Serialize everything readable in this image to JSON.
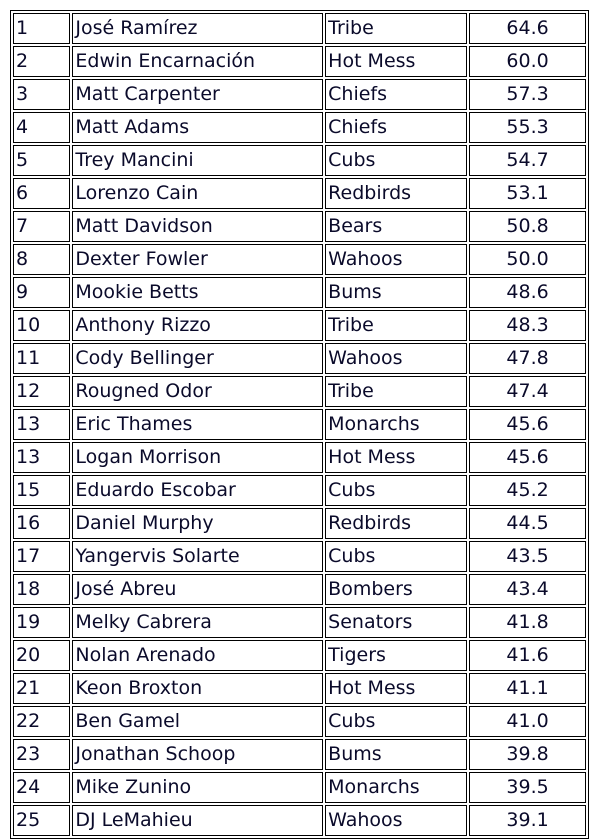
{
  "rows": [
    [
      "1",
      "José Ramírez",
      "Tribe",
      "64.6"
    ],
    [
      "2",
      "Edwin Encarnación",
      "Hot Mess",
      "60.0"
    ],
    [
      "3",
      "Matt Carpenter",
      "Chiefs",
      "57.3"
    ],
    [
      "4",
      "Matt Adams",
      "Chiefs",
      "55.3"
    ],
    [
      "5",
      "Trey Mancini",
      "Cubs",
      "54.7"
    ],
    [
      "6",
      "Lorenzo Cain",
      "Redbirds",
      "53.1"
    ],
    [
      "7",
      "Matt Davidson",
      "Bears",
      "50.8"
    ],
    [
      "8",
      "Dexter Fowler",
      "Wahoos",
      "50.0"
    ],
    [
      "9",
      "Mookie Betts",
      "Bums",
      "48.6"
    ],
    [
      "10",
      "Anthony Rizzo",
      "Tribe",
      "48.3"
    ],
    [
      "11",
      "Cody Bellinger",
      "Wahoos",
      "47.8"
    ],
    [
      "12",
      "Rougned Odor",
      "Tribe",
      "47.4"
    ],
    [
      "13",
      "Eric Thames",
      "Monarchs",
      "45.6"
    ],
    [
      "13",
      "Logan Morrison",
      "Hot Mess",
      "45.6"
    ],
    [
      "15",
      "Eduardo Escobar",
      "Cubs",
      "45.2"
    ],
    [
      "16",
      "Daniel Murphy",
      "Redbirds",
      "44.5"
    ],
    [
      "17",
      "Yangervis Solarte",
      "Cubs",
      "43.5"
    ],
    [
      "18",
      "José Abreu",
      "Bombers",
      "43.4"
    ],
    [
      "19",
      "Melky Cabrera",
      "Senators",
      "41.8"
    ],
    [
      "20",
      "Nolan Arenado",
      "Tigers",
      "41.6"
    ],
    [
      "21",
      "Keon Broxton",
      "Hot Mess",
      "41.1"
    ],
    [
      "22",
      "Ben Gamel",
      "Cubs",
      "41.0"
    ],
    [
      "23",
      "Jonathan Schoop",
      "Bums",
      "39.8"
    ],
    [
      "24",
      "Mike Zunino",
      "Monarchs",
      "39.5"
    ],
    [
      "25",
      "DJ LeMahieu",
      "Wahoos",
      "39.1"
    ]
  ]
}
